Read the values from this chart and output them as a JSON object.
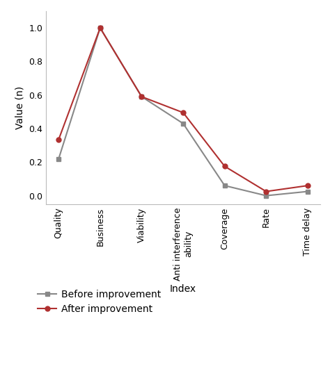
{
  "categories": [
    "Quality",
    "Business",
    "Viability",
    "Anti interference\nability",
    "Coverage",
    "Rate",
    "Time delay"
  ],
  "before_improvement": [
    0.22,
    1.0,
    0.59,
    0.43,
    0.06,
    0.0,
    0.025
  ],
  "after_improvement": [
    0.335,
    1.0,
    0.59,
    0.495,
    0.175,
    0.025,
    0.06
  ],
  "before_color": "#888888",
  "after_color": "#b03030",
  "before_marker": "s",
  "after_marker": "o",
  "ylabel": "Value (n)",
  "xlabel": "Index",
  "ylim": [
    -0.05,
    1.1
  ],
  "yticks": [
    0.0,
    0.2,
    0.4,
    0.6,
    0.8,
    1.0
  ],
  "legend_before": "Before improvement",
  "legend_after": "After improvement",
  "background_color": "#ffffff",
  "linewidth": 1.5,
  "markersize": 5,
  "tick_fontsize": 9,
  "label_fontsize": 10,
  "legend_fontsize": 10
}
